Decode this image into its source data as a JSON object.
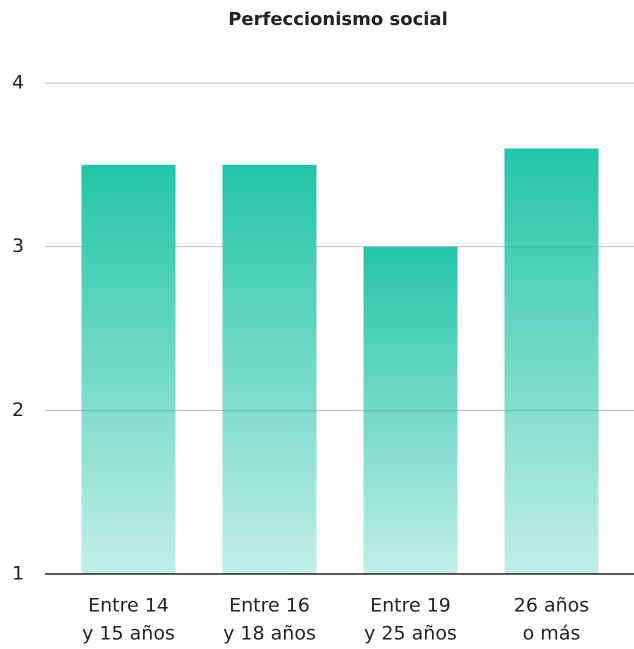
{
  "chart_data": {
    "type": "bar",
    "title": "Perfeccionismo social",
    "categories": [
      [
        "Entre 14",
        "y 15 años"
      ],
      [
        "Entre 16",
        "y 18 años"
      ],
      [
        "Entre 19",
        "y 25 años"
      ],
      [
        "26 años",
        "o más"
      ]
    ],
    "values": [
      3.5,
      3.5,
      3.0,
      3.6
    ],
    "color": "#22c4a8",
    "ylim": [
      1,
      4
    ],
    "yticks": [
      1,
      2,
      3,
      4
    ],
    "grid": true
  }
}
